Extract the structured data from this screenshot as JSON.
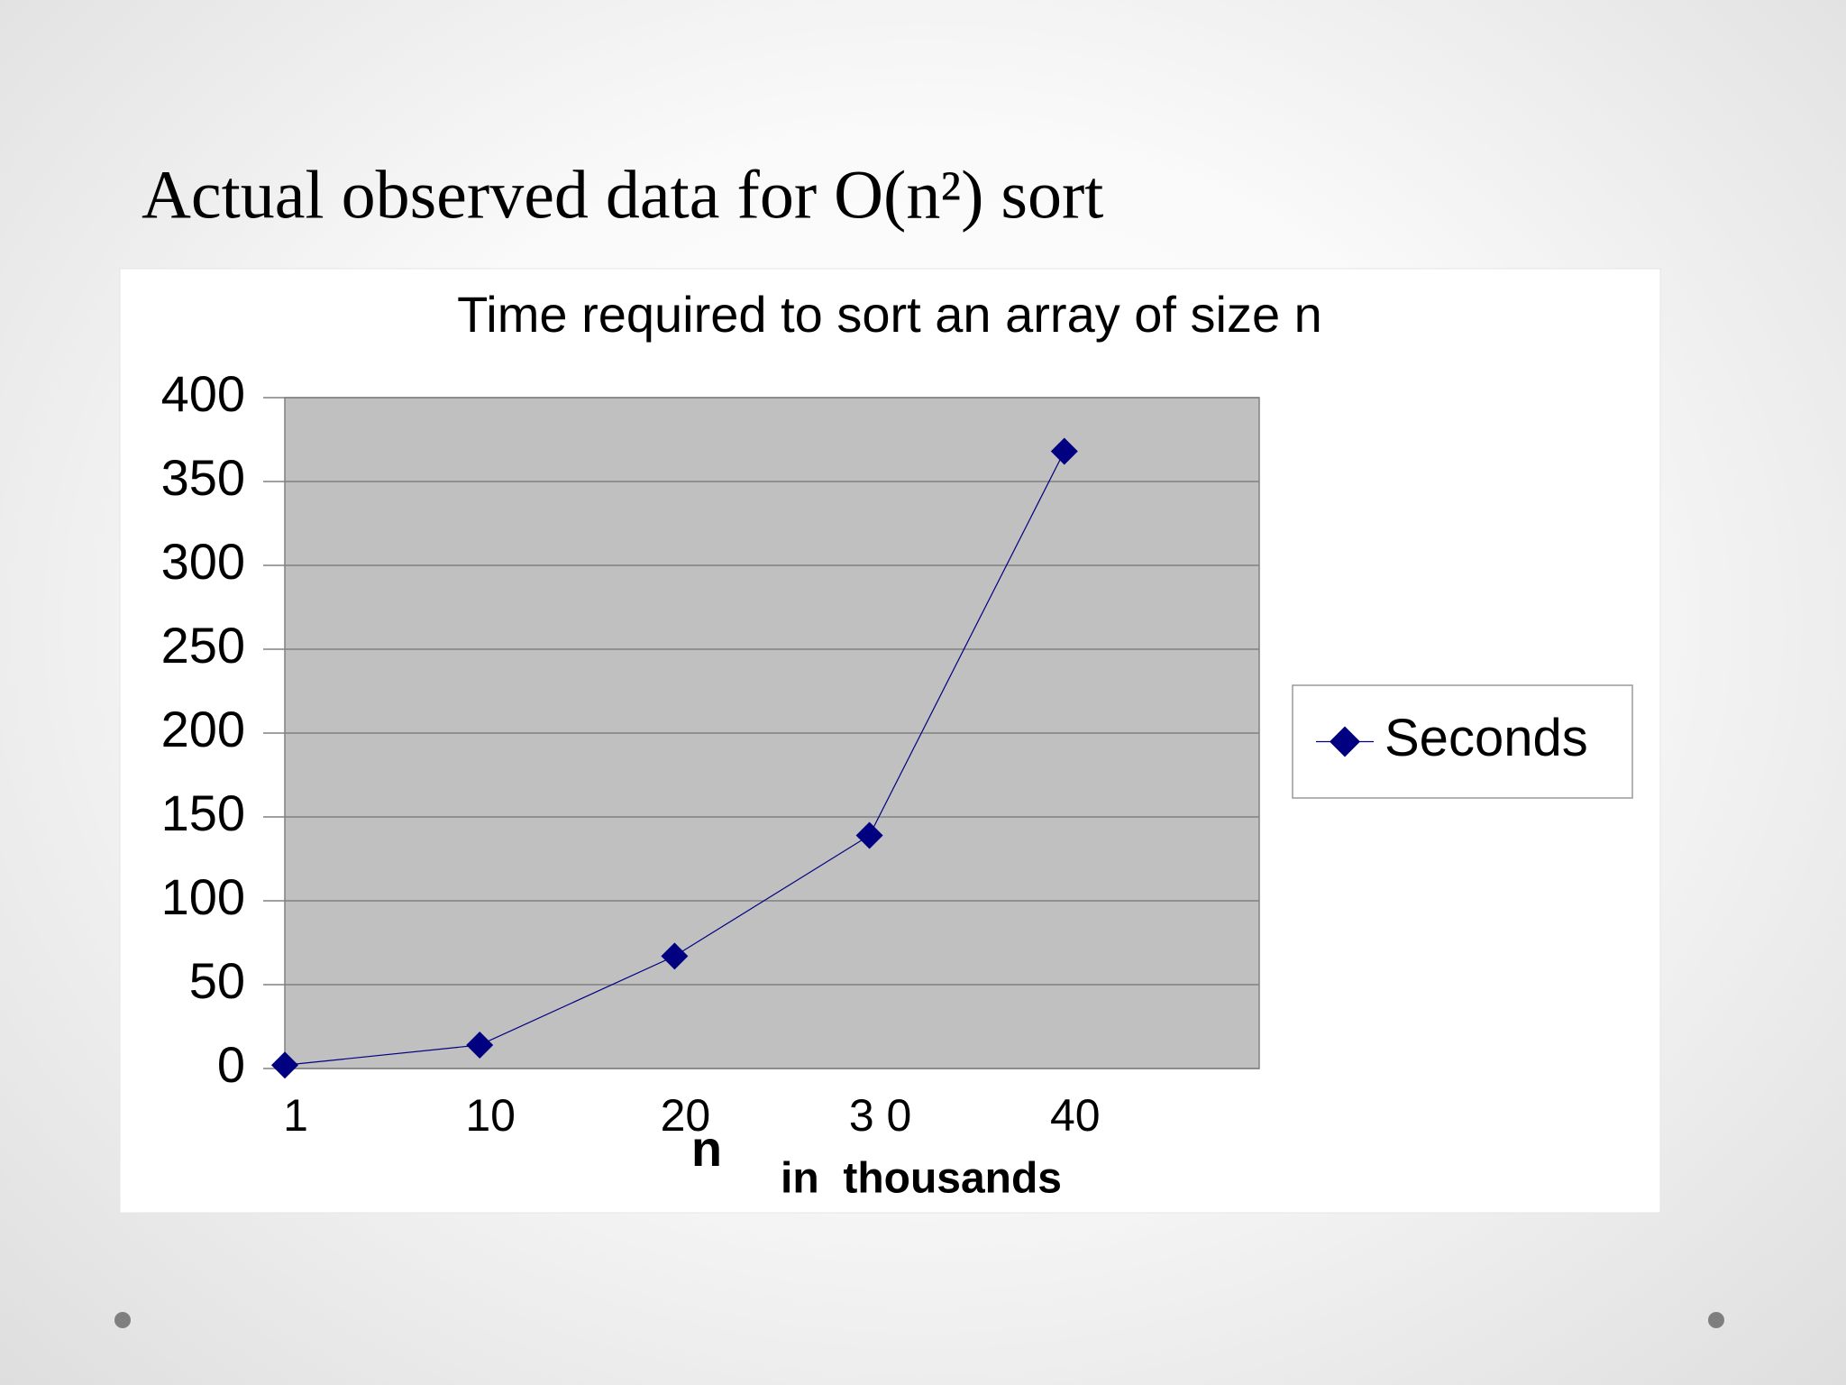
{
  "slide_title": "Actual observed data for O(n²) sort",
  "chart_data": {
    "type": "line",
    "title": "Time required to sort an array of size n",
    "x_label": "n",
    "x_sublabel": "in  thousands",
    "categories": [
      "1",
      "10",
      "20",
      "3 0",
      "40"
    ],
    "series": [
      {
        "name": "Seconds",
        "color": "#000080",
        "values": [
          2,
          14,
          67,
          139,
          368
        ]
      }
    ],
    "ylim": [
      0,
      400
    ],
    "yticks": [
      0,
      50,
      100,
      150,
      200,
      250,
      300,
      350,
      400
    ],
    "grid": true,
    "legend": "right",
    "plot_background": "#c0c0c0"
  }
}
